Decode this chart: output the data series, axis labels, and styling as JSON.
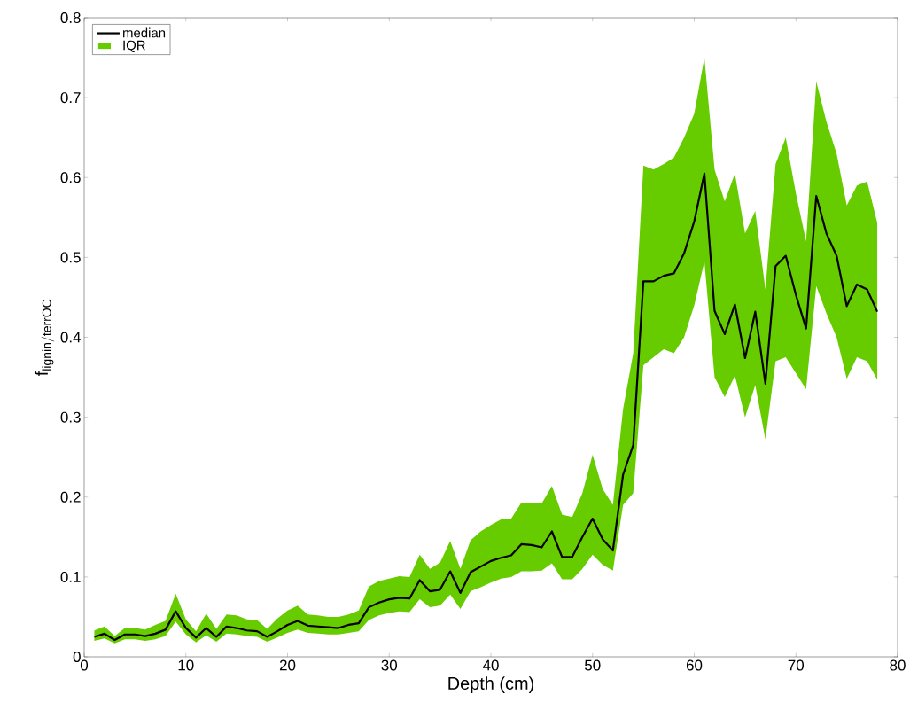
{
  "chart_data": {
    "type": "line",
    "xlabel": "Depth (cm)",
    "ylabel": "\\mathrm{f}_{\\mathrm{lignin/terrOC}}",
    "x": [
      1,
      2,
      3,
      4,
      5,
      6,
      7,
      8,
      9,
      10,
      11,
      12,
      13,
      14,
      15,
      16,
      17,
      18,
      19,
      20,
      21,
      22,
      23,
      24,
      25,
      26,
      27,
      28,
      29,
      30,
      31,
      32,
      33,
      34,
      35,
      36,
      37,
      38,
      39,
      40,
      41,
      42,
      43,
      44,
      45,
      46,
      47,
      48,
      49,
      50,
      51,
      52,
      53,
      54,
      55,
      56,
      57,
      58,
      59,
      60,
      61,
      62,
      63,
      64,
      65,
      66,
      67,
      68,
      69,
      70,
      71,
      72,
      73,
      74,
      75,
      76,
      77,
      78
    ],
    "series": [
      {
        "name": "median",
        "color": "#000000",
        "values": [
          0.025,
          0.029,
          0.021,
          0.028,
          0.028,
          0.026,
          0.029,
          0.034,
          0.057,
          0.036,
          0.024,
          0.036,
          0.025,
          0.038,
          0.036,
          0.033,
          0.032,
          0.025,
          0.032,
          0.04,
          0.045,
          0.039,
          0.038,
          0.037,
          0.036,
          0.04,
          0.042,
          0.062,
          0.068,
          0.072,
          0.074,
          0.073,
          0.096,
          0.082,
          0.084,
          0.107,
          0.08,
          0.106,
          0.113,
          0.12,
          0.124,
          0.127,
          0.141,
          0.14,
          0.137,
          0.157,
          0.125,
          0.125,
          0.15,
          0.173,
          0.147,
          0.133,
          0.228,
          0.265,
          0.47,
          0.47,
          0.477,
          0.48,
          0.505,
          0.545,
          0.605,
          0.433,
          0.404,
          0.441,
          0.374,
          0.432,
          0.342,
          0.489,
          0.502,
          0.453,
          0.411,
          0.577,
          0.53,
          0.502,
          0.439,
          0.466,
          0.46,
          0.432
        ],
        "upper": [
          0.033,
          0.038,
          0.026,
          0.036,
          0.036,
          0.034,
          0.04,
          0.045,
          0.079,
          0.047,
          0.032,
          0.054,
          0.035,
          0.053,
          0.052,
          0.047,
          0.046,
          0.035,
          0.048,
          0.058,
          0.064,
          0.053,
          0.052,
          0.05,
          0.05,
          0.053,
          0.058,
          0.088,
          0.095,
          0.098,
          0.101,
          0.1,
          0.128,
          0.11,
          0.118,
          0.145,
          0.11,
          0.146,
          0.157,
          0.165,
          0.172,
          0.173,
          0.193,
          0.193,
          0.192,
          0.214,
          0.178,
          0.175,
          0.205,
          0.253,
          0.21,
          0.19,
          0.31,
          0.38,
          0.615,
          0.61,
          0.617,
          0.625,
          0.65,
          0.68,
          0.75,
          0.61,
          0.57,
          0.605,
          0.53,
          0.558,
          0.46,
          0.617,
          0.65,
          0.58,
          0.52,
          0.72,
          0.67,
          0.63,
          0.565,
          0.59,
          0.595,
          0.543
        ],
        "lower": [
          0.02,
          0.023,
          0.017,
          0.022,
          0.022,
          0.02,
          0.022,
          0.026,
          0.044,
          0.028,
          0.018,
          0.027,
          0.019,
          0.029,
          0.028,
          0.026,
          0.025,
          0.019,
          0.024,
          0.03,
          0.034,
          0.03,
          0.029,
          0.028,
          0.028,
          0.03,
          0.032,
          0.046,
          0.052,
          0.055,
          0.057,
          0.056,
          0.072,
          0.062,
          0.064,
          0.078,
          0.06,
          0.082,
          0.087,
          0.093,
          0.098,
          0.1,
          0.107,
          0.107,
          0.108,
          0.117,
          0.097,
          0.097,
          0.11,
          0.128,
          0.115,
          0.108,
          0.19,
          0.205,
          0.365,
          0.375,
          0.385,
          0.38,
          0.4,
          0.44,
          0.495,
          0.35,
          0.325,
          0.352,
          0.3,
          0.34,
          0.272,
          0.37,
          0.375,
          0.355,
          0.335,
          0.464,
          0.43,
          0.4,
          0.348,
          0.375,
          0.37,
          0.347
        ]
      }
    ],
    "annotations": [
      "IQR"
    ],
    "xlim": [
      0,
      80
    ],
    "xticks": [
      0,
      10,
      20,
      30,
      40,
      50,
      60,
      70,
      80
    ],
    "ylim": [
      0,
      0.8
    ],
    "yticks": [
      0,
      0.1,
      0.2,
      0.3,
      0.4,
      0.5,
      0.6,
      0.7,
      0.8
    ],
    "legend": "top left",
    "grid": false,
    "line_style": "solid",
    "marker": "none"
  }
}
